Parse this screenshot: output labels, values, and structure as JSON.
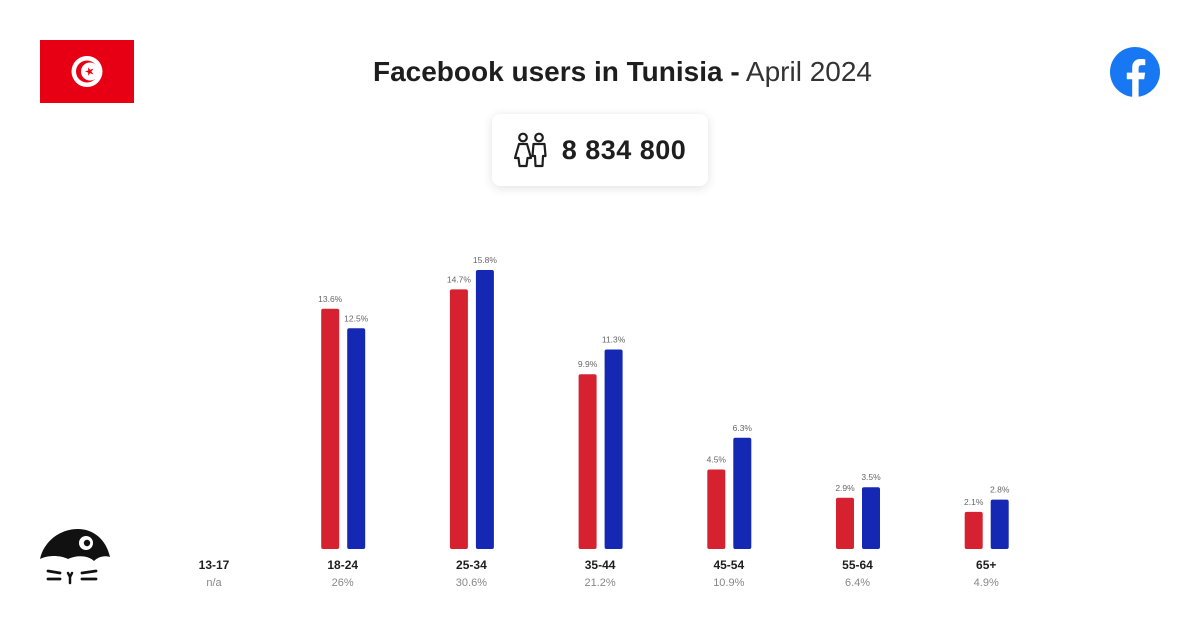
{
  "header": {
    "title_bold": "Facebook users in Tunisia -",
    "title_light": "April 2024",
    "flag_icon": "tunisia-flag",
    "logo_icon": "facebook-logo-icon"
  },
  "total": {
    "icon": "people-icon",
    "value": "8 834 800"
  },
  "colors": {
    "female": "#d62230",
    "male": "#1428b4",
    "bar_label": "#666666",
    "category_label": "#1e1e1e",
    "share_label": "#888888"
  },
  "chart_data": {
    "type": "bar",
    "categories": [
      "13-17",
      "18-24",
      "25-34",
      "35-44",
      "45-54",
      "55-64",
      "65+"
    ],
    "category_totals": [
      "n/a",
      "26%",
      "30.6%",
      "21.2%",
      "10.9%",
      "6.4%",
      "4.9%"
    ],
    "series": [
      {
        "color": "#d62230",
        "values": [
          null,
          13.6,
          14.7,
          9.9,
          4.5,
          2.9,
          2.1
        ],
        "labels": [
          "",
          "13.6%",
          "14.7%",
          "9.9%",
          "4.5%",
          "2.9%",
          "2.1%"
        ]
      },
      {
        "color": "#1428b4",
        "values": [
          null,
          12.5,
          15.8,
          11.3,
          6.3,
          3.5,
          2.8
        ],
        "labels": [
          "",
          "12.5%",
          "15.8%",
          "11.3%",
          "6.3%",
          "3.5%",
          "2.8%"
        ]
      }
    ],
    "ylim": [
      0,
      15.8
    ],
    "grid": false,
    "legend": "none"
  }
}
